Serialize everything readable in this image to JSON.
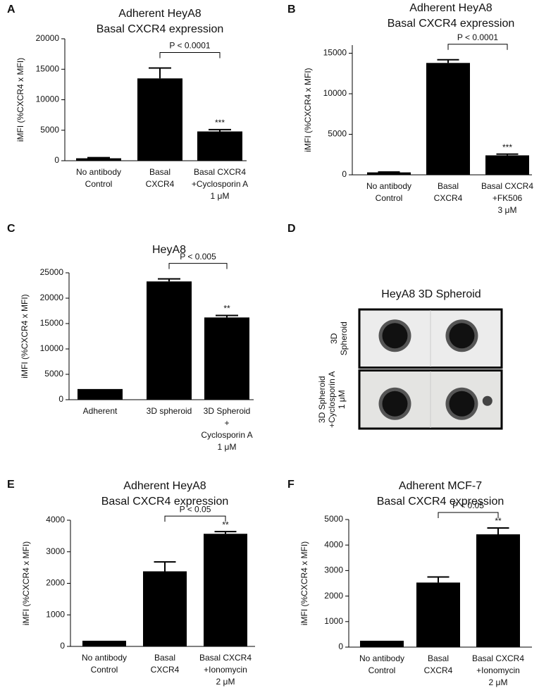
{
  "chart_data": [
    {
      "type": "bar",
      "panel": "A",
      "title": [
        "Adherent HeyA8",
        "Basal CXCR4 expression"
      ],
      "ylabel": "iMFI (%CXCR4 x MFI)",
      "categories": [
        [
          "No antibody",
          "Control"
        ],
        [
          "Basal",
          "CXCR4"
        ],
        [
          "Basal CXCR4",
          "+Cyclosporin A",
          "1 μM"
        ]
      ],
      "values": [
        400,
        13500,
        4800
      ],
      "errors": [
        100,
        1700,
        300
      ],
      "color": "#000000",
      "ylim": [
        0,
        20000
      ],
      "yticks": [
        0,
        5000,
        10000,
        15000,
        20000
      ],
      "bracket_label": "P < 0.0001",
      "significance": [
        null,
        null,
        "***"
      ]
    },
    {
      "type": "bar",
      "panel": "B",
      "title": [
        "Adherent HeyA8",
        "Basal CXCR4 expression"
      ],
      "ylabel": "iMFI (%CXCR4 x MFI)",
      "categories": [
        [
          "No antibody",
          "Control"
        ],
        [
          "Basal",
          "CXCR4"
        ],
        [
          "Basal CXCR4",
          "+FK506",
          "3 μM"
        ]
      ],
      "values": [
        300,
        13800,
        2400
      ],
      "errors": [
        50,
        400,
        150
      ],
      "color": "#000000",
      "ylim": [
        0,
        16000
      ],
      "yticks": [
        0,
        5000,
        10000,
        15000
      ],
      "bracket_label": "P < 0.0001",
      "significance": [
        null,
        null,
        "***"
      ]
    },
    {
      "type": "bar",
      "panel": "C",
      "title": [
        "HeyA8"
      ],
      "ylabel": "iMFI (%CXCR4 x MFI)",
      "categories": [
        [
          "Adherent"
        ],
        [
          "3D spheroid"
        ],
        [
          "3D Spheroid",
          "+",
          "Cyclosporin A",
          "1 μM"
        ]
      ],
      "values": [
        2100,
        23300,
        16200
      ],
      "errors": [
        null,
        500,
        400
      ],
      "color": "#000000",
      "ylim": [
        0,
        25000
      ],
      "yticks": [
        0,
        5000,
        10000,
        15000,
        20000,
        25000
      ],
      "bracket_label": "P < 0.005",
      "significance": [
        null,
        null,
        "**"
      ]
    },
    {
      "type": "image",
      "panel": "D",
      "title": [
        "HeyA8 3D Spheroid"
      ],
      "rows": [
        [
          "3D",
          "Spheroid"
        ],
        [
          "3D Spheroid",
          "+Cyclosporin A",
          "1 μM"
        ]
      ]
    },
    {
      "type": "bar",
      "panel": "E",
      "title": [
        "Adherent HeyA8",
        "Basal CXCR4 expression"
      ],
      "ylabel": "iMFI (%CXCR4 x MFI)",
      "categories": [
        [
          "No antibody",
          "Control"
        ],
        [
          "Basal",
          "CXCR4"
        ],
        [
          "Basal CXCR4",
          "+Ionomycin",
          "2 μM"
        ]
      ],
      "values": [
        180,
        2380,
        3570
      ],
      "errors": [
        null,
        300,
        70
      ],
      "color": "#000000",
      "ylim": [
        0,
        4000
      ],
      "yticks": [
        0,
        1000,
        2000,
        3000,
        4000
      ],
      "bracket_label": "P < 0.05",
      "significance": [
        null,
        null,
        "**"
      ]
    },
    {
      "type": "bar",
      "panel": "F",
      "title": [
        "Adherent MCF-7",
        "Basal CXCR4 expression"
      ],
      "ylabel": "iMFI (%CXCR4 x MFI)",
      "categories": [
        [
          "No antibody",
          "Control"
        ],
        [
          "Basal",
          "CXCR4"
        ],
        [
          "Basal CXCR4",
          "+Ionomycin",
          "2 μM"
        ]
      ],
      "values": [
        250,
        2530,
        4420
      ],
      "errors": [
        null,
        220,
        250
      ],
      "color": "#000000",
      "ylim": [
        0,
        5000
      ],
      "yticks": [
        0,
        1000,
        2000,
        3000,
        4000,
        5000
      ],
      "bracket_label": "P < 0.05",
      "significance": [
        null,
        null,
        "**"
      ]
    }
  ]
}
